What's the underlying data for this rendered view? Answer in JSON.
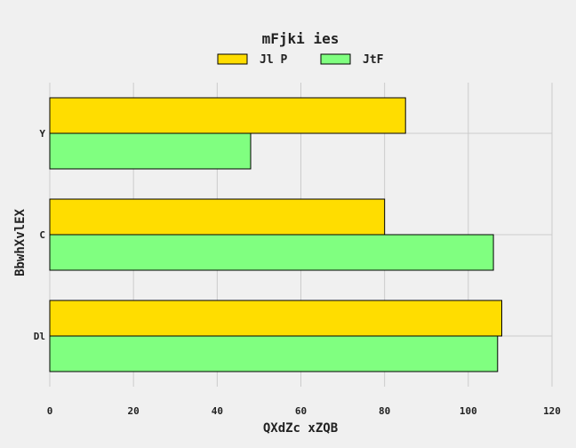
{
  "chart_data": {
    "type": "bar",
    "orientation": "horizontal",
    "title": "mFjki ies",
    "xlabel": "QXdZc xZQB",
    "ylabel": "BbwhXvlEX",
    "categories": [
      "Y",
      "C",
      "Dl"
    ],
    "series": [
      {
        "name": "Jl P",
        "color": "#ffdd00",
        "values": [
          85,
          80,
          108
        ]
      },
      {
        "name": "JtF",
        "color": "#80ff80",
        "values": [
          48,
          106,
          107
        ]
      }
    ],
    "xlim": [
      0,
      120
    ],
    "xticks": [
      0,
      20,
      40,
      60,
      80,
      100,
      120
    ],
    "grid": true,
    "legend_position": "top-center"
  }
}
